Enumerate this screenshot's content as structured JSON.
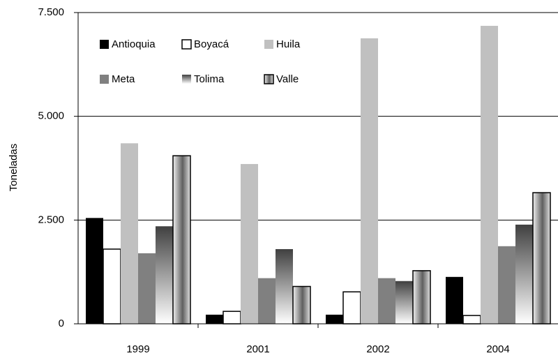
{
  "chart_data": {
    "type": "bar",
    "y_label": "Toneladas",
    "categories": [
      "1999",
      "2001",
      "2002",
      "2004"
    ],
    "series": [
      {
        "name": "Antioquia",
        "color": "#000000",
        "values": [
          2550,
          220,
          220,
          1130
        ]
      },
      {
        "name": "Boyacá",
        "color": "#ffffff",
        "outline": "#000000",
        "values": [
          1800,
          300,
          770,
          200
        ]
      },
      {
        "name": "Huila",
        "color": "#c0c0c0",
        "values": [
          4350,
          3850,
          6880,
          7180
        ]
      },
      {
        "name": "Meta",
        "color": "#808080",
        "values": [
          1700,
          1100,
          1100,
          1870
        ]
      },
      {
        "name": "Tolima",
        "color": "#505050",
        "gradient": "vertical",
        "values": [
          2350,
          1800,
          1030,
          2390
        ]
      },
      {
        "name": "Valle",
        "color": "#707070",
        "outline": "#000000",
        "gradient": "horizontal",
        "values": [
          4050,
          900,
          1280,
          3160
        ]
      }
    ],
    "ylim": [
      0,
      7500
    ],
    "yticks": [
      {
        "value": 0,
        "label": "0"
      },
      {
        "value": 2500,
        "label": "2.500"
      },
      {
        "value": 5000,
        "label": "5.000"
      },
      {
        "value": 7500,
        "label": "7.500"
      }
    ],
    "grid": true,
    "legend": "top-left"
  }
}
